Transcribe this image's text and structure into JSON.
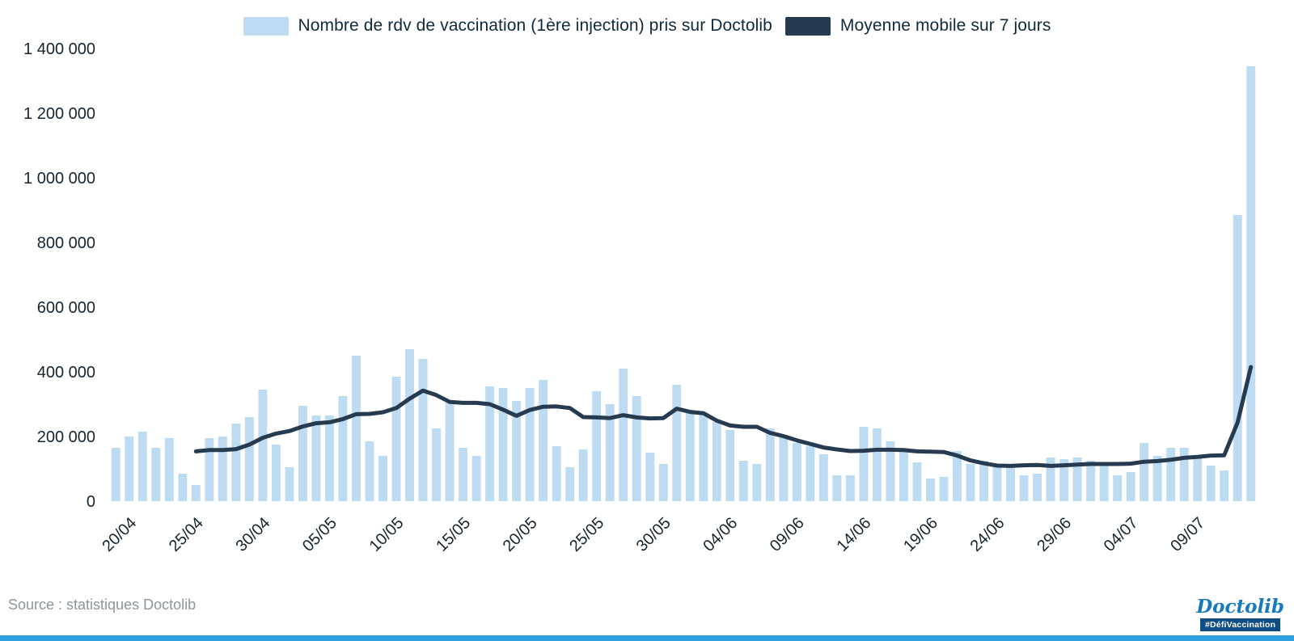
{
  "chart_data": {
    "type": "bar",
    "title": "",
    "ylim": [
      0,
      1400000
    ],
    "ytick_step": 200000,
    "ytick_labels": [
      "0",
      "200 000",
      "400 000",
      "600 000",
      "800 000",
      "1 000 000",
      "1 200 000",
      "1 400 000"
    ],
    "xticks": [
      {
        "label": "20/04",
        "index": 1
      },
      {
        "label": "25/04",
        "index": 6
      },
      {
        "label": "30/04",
        "index": 11
      },
      {
        "label": "05/05",
        "index": 16
      },
      {
        "label": "10/05",
        "index": 21
      },
      {
        "label": "15/05",
        "index": 26
      },
      {
        "label": "20/05",
        "index": 31
      },
      {
        "label": "25/05",
        "index": 36
      },
      {
        "label": "30/05",
        "index": 41
      },
      {
        "label": "04/06",
        "index": 46
      },
      {
        "label": "09/06",
        "index": 51
      },
      {
        "label": "14/06",
        "index": 56
      },
      {
        "label": "19/06",
        "index": 61
      },
      {
        "label": "24/06",
        "index": 66
      },
      {
        "label": "29/06",
        "index": 71
      },
      {
        "label": "04/07",
        "index": 76
      },
      {
        "label": "09/07",
        "index": 81
      }
    ],
    "grid": false,
    "legend_position": "top",
    "series": [
      {
        "name": "Nombre de rdv de vaccination (1ère injection) pris sur Doctolib",
        "type": "bar",
        "color": "#bddcf2",
        "values": [
          165000,
          200000,
          215000,
          165000,
          195000,
          85000,
          50000,
          195000,
          200000,
          240000,
          260000,
          345000,
          175000,
          105000,
          295000,
          265000,
          265000,
          325000,
          450000,
          185000,
          140000,
          385000,
          470000,
          440000,
          225000,
          305000,
          165000,
          140000,
          355000,
          350000,
          310000,
          350000,
          375000,
          170000,
          105000,
          160000,
          340000,
          300000,
          410000,
          325000,
          150000,
          115000,
          360000,
          275000,
          270000,
          245000,
          220000,
          125000,
          115000,
          225000,
          205000,
          180000,
          170000,
          145000,
          80000,
          80000,
          230000,
          225000,
          185000,
          160000,
          120000,
          70000,
          75000,
          155000,
          115000,
          125000,
          110000,
          115000,
          80000,
          85000,
          135000,
          130000,
          135000,
          125000,
          115000,
          80000,
          90000,
          180000,
          140000,
          165000,
          165000,
          140000,
          110000,
          95000,
          885000,
          1345000
        ]
      },
      {
        "name": "Moyenne mobile sur 7 jours",
        "type": "line",
        "color": "#263b50",
        "values": [
          null,
          null,
          null,
          null,
          null,
          null,
          154000,
          158000,
          158000,
          161000,
          175000,
          196000,
          209000,
          217000,
          231000,
          241000,
          244000,
          254000,
          269000,
          270000,
          275000,
          288000,
          317000,
          342000,
          328000,
          307000,
          304000,
          304000,
          300000,
          283000,
          264000,
          282000,
          292000,
          293000,
          288000,
          260000,
          259000,
          257000,
          266000,
          259000,
          256000,
          257000,
          286000,
          276000,
          272000,
          249000,
          234000,
          230000,
          230000,
          211000,
          201000,
          188000,
          177000,
          166000,
          160000,
          155000,
          156000,
          159000,
          159000,
          158000,
          154000,
          153000,
          152000,
          141000,
          126000,
          117000,
          110000,
          109000,
          111000,
          112000,
          109000,
          111000,
          113000,
          115000,
          115000,
          115000,
          116000,
          122000,
          124000,
          128000,
          134000,
          137000,
          141000,
          142000,
          243000,
          415000
        ]
      }
    ]
  },
  "footer": {
    "source": "Source : statistiques Doctolib",
    "logo_text": "Doctolib",
    "hashtag": "#DéfiVaccination"
  },
  "colors": {
    "bar": "#bddcf2",
    "line": "#263b50",
    "axis_text": "#16242f",
    "source_text": "#8c969d",
    "logo_blue": "#1779be",
    "badge_bg": "#0f4c81",
    "bottom_strip": "#2e9fe0"
  }
}
